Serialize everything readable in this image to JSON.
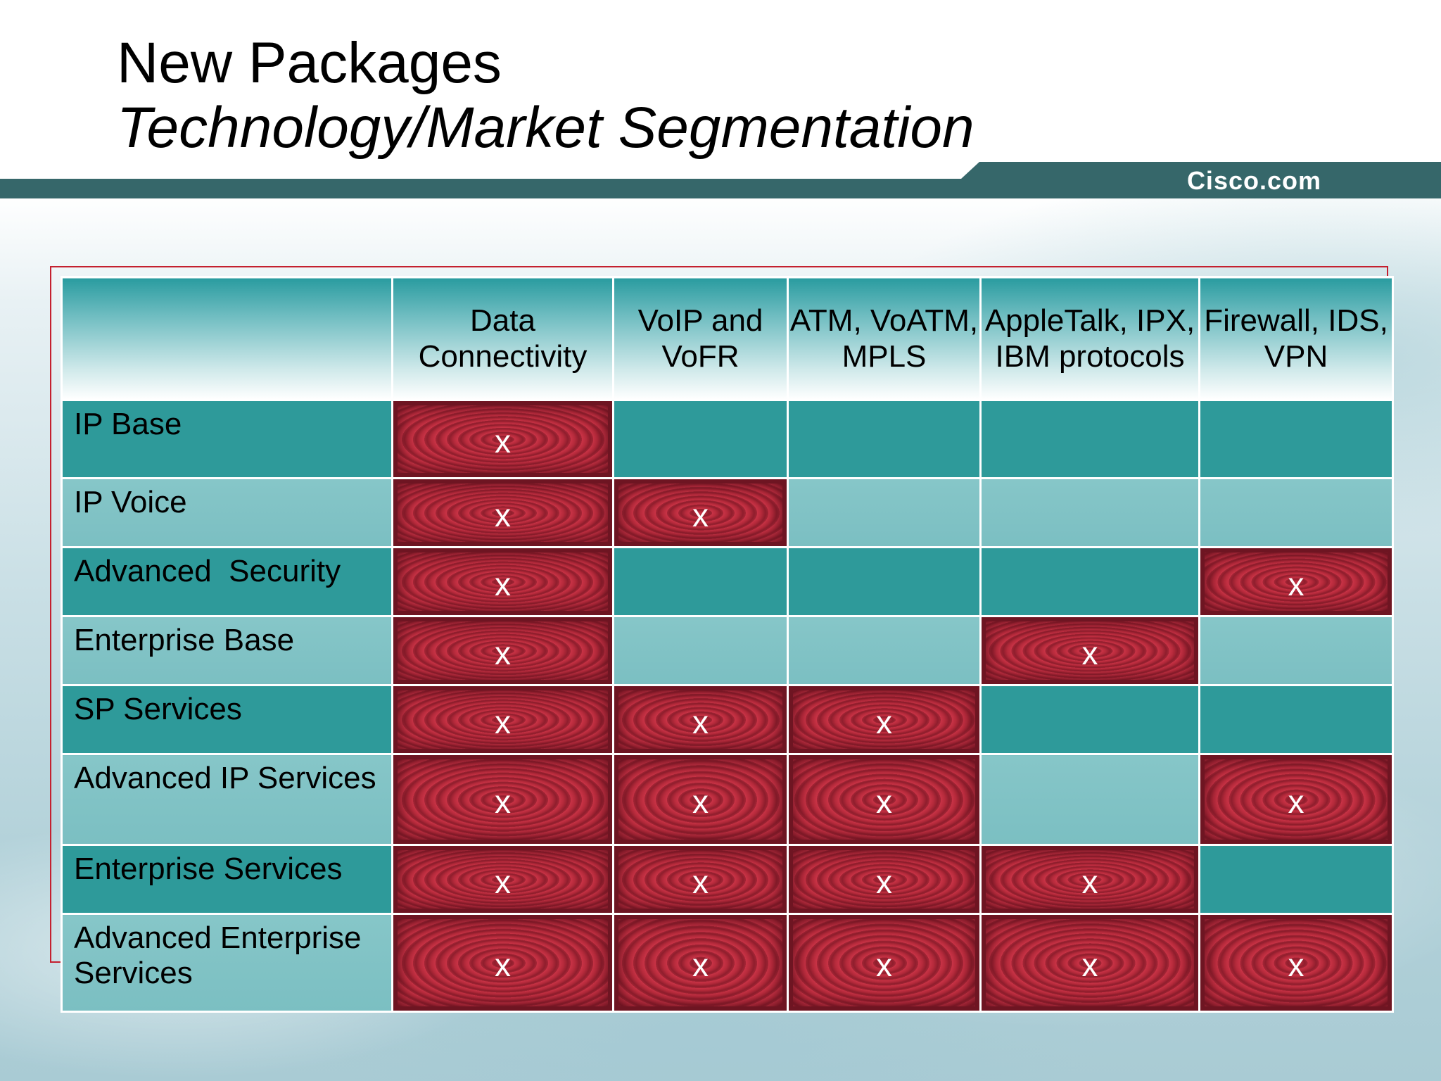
{
  "title": {
    "line1": "New Packages",
    "line2": "Technology/Market Segmentation"
  },
  "brand": "Cisco.com",
  "colors": {
    "banner": "#36676a",
    "accent_border": "#c4202f",
    "cell_mark": "#b52a3b",
    "row_dark": "#2e9a9a",
    "row_light": "#7bbfc2"
  },
  "table": {
    "columns": [
      "Data Connectivity",
      "VoIP and VoFR",
      "ATM, VoATM, MPLS",
      "AppleTalk, IPX, IBM protocols",
      "Firewall, IDS, VPN"
    ],
    "mark_symbol": "x",
    "rows": [
      {
        "label": "IP Base",
        "marks": [
          true,
          false,
          false,
          false,
          false
        ]
      },
      {
        "label": "IP Voice",
        "marks": [
          true,
          true,
          false,
          false,
          false
        ]
      },
      {
        "label": "Advanced  Security",
        "marks": [
          true,
          false,
          false,
          false,
          true
        ]
      },
      {
        "label": "Enterprise Base",
        "marks": [
          true,
          false,
          false,
          true,
          false
        ]
      },
      {
        "label": "SP Services",
        "marks": [
          true,
          true,
          true,
          false,
          false
        ]
      },
      {
        "label": "Advanced IP Services",
        "marks": [
          true,
          true,
          true,
          false,
          true
        ]
      },
      {
        "label": "Enterprise Services",
        "marks": [
          true,
          true,
          true,
          true,
          false
        ]
      },
      {
        "label": "Advanced Enterprise Services",
        "marks": [
          true,
          true,
          true,
          true,
          true
        ]
      }
    ]
  }
}
